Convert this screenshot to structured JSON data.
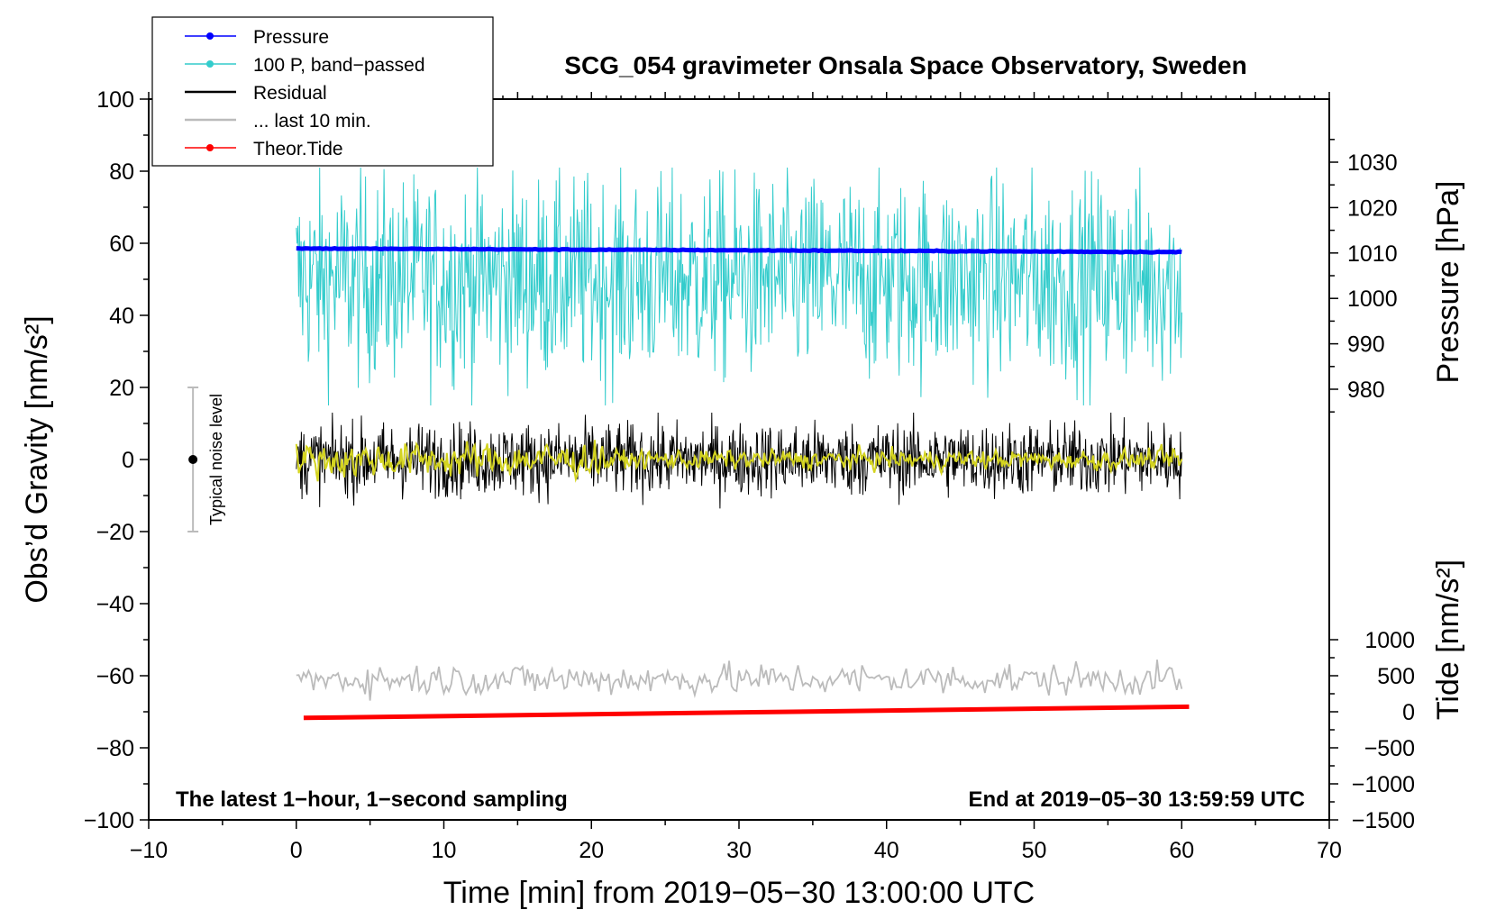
{
  "chart_data": {
    "type": "line",
    "title": "SCG_054 gravimeter Onsala Space Observatory, Sweden",
    "xlabel": "Time [min] from 2019−05−30 13:00:00 UTC",
    "ylabel_left": "Obs’d Gravity [nm/s²]",
    "ylabel_pressure": "Pressure [hPa]",
    "ylabel_tide": "Tide [nm/s²]",
    "xlim": [
      -10,
      70
    ],
    "ylim_left": [
      -100,
      100
    ],
    "x_ticks": [
      -10,
      0,
      10,
      20,
      30,
      40,
      50,
      60,
      70
    ],
    "x_tick_labels": [
      "−10",
      "0",
      "10",
      "20",
      "30",
      "40",
      "50",
      "60",
      "70"
    ],
    "y_left_ticks": [
      100,
      80,
      60,
      40,
      20,
      0,
      -20,
      -40,
      -60,
      -80,
      -100
    ],
    "y_left_tick_labels": [
      "100",
      "80",
      "60",
      "40",
      "20",
      "0",
      "−20",
      "−40",
      "−60",
      "−80",
      "−100"
    ],
    "pressure_ticks": [
      1030,
      1020,
      1010,
      1000,
      990,
      980
    ],
    "pressure_tick_labels": [
      "1030",
      "1020",
      "1010",
      "1000",
      "990",
      "980"
    ],
    "pressure_map": {
      "hpa": [
        980,
        1030
      ],
      "left_value": [
        19.5,
        82.5
      ]
    },
    "tide_ticks": [
      1000,
      500,
      0,
      -500,
      -1000,
      -1500
    ],
    "tide_tick_labels": [
      "1000",
      "500",
      "0",
      "−500",
      "−1000",
      "−1500"
    ],
    "tide_map": {
      "nm_s2": [
        -1500,
        1000
      ],
      "left_value": [
        -100,
        -50
      ]
    },
    "series": [
      {
        "name": "Pressure",
        "color": "#0000ff",
        "x_range": [
          0,
          60
        ],
        "pressure_start_hpa": 1011.0,
        "pressure_end_hpa": 1010.2
      },
      {
        "name": "100 P, band−passed",
        "color": "#33cccc",
        "x_range": [
          0,
          60
        ],
        "center": 50,
        "spread": 14,
        "min": 15,
        "max": 81
      },
      {
        "name": "Residual",
        "color": "#000000",
        "x_range": [
          0,
          60
        ],
        "center": 0,
        "spread": 5,
        "min": -15,
        "max": 13
      },
      {
        "name": "... last 10 min.",
        "color": "#bbbbbb",
        "x_range": [
          0,
          60
        ],
        "center": -61,
        "spread": 2.2,
        "min": -68,
        "max": -53
      },
      {
        "name": "Theor.Tide",
        "color": "#ff0000",
        "x_range": [
          0.5,
          60.5
        ],
        "tide_start": -85,
        "tide_end": 70
      },
      {
        "name": "smoothed residual",
        "color": "#d4d420",
        "x_range": [
          0,
          60
        ],
        "center": 0,
        "spread": 2
      }
    ],
    "noise_bar": {
      "label": "Typical noise level",
      "x": -7,
      "low": -20,
      "high": 20
    },
    "annotation_left": "The latest 1−hour, 1−second sampling",
    "annotation_right": "End at 2019−05−30 13:59:59 UTC"
  },
  "legend": {
    "items": [
      {
        "label": "Pressure",
        "color": "#0000ff",
        "marker": true
      },
      {
        "label": "100 P, band−passed",
        "color": "#33cccc",
        "marker": true
      },
      {
        "label": "Residual",
        "color": "#000000",
        "marker": false
      },
      {
        "label": "... last 10 min.",
        "color": "#bbbbbb",
        "marker": false
      },
      {
        "label": "Theor.Tide",
        "color": "#ff0000",
        "marker": true
      }
    ]
  }
}
